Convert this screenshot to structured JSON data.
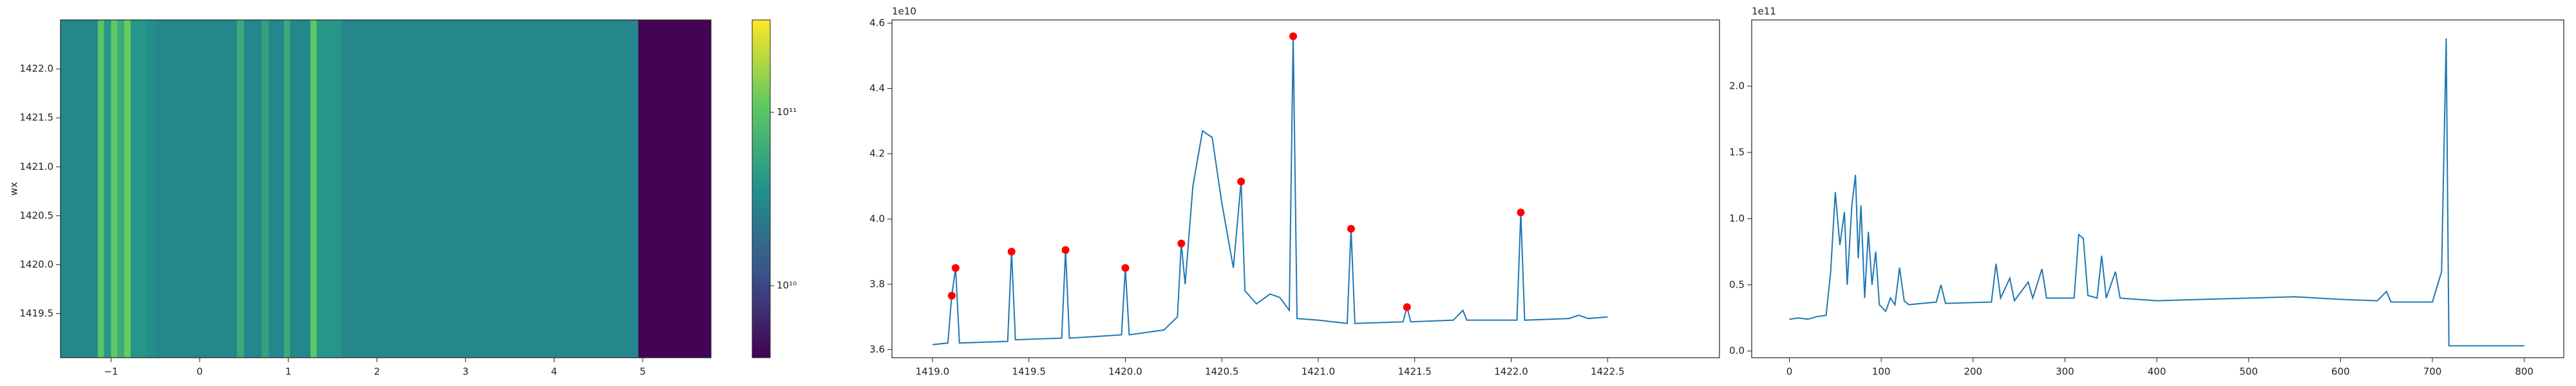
{
  "chart_data": [
    {
      "type": "heatmap",
      "ylabel": "wx",
      "x_edges": [
        -1.57,
        -1.15,
        -1.08,
        -1.0,
        -0.93,
        -0.85,
        -0.78,
        -0.6,
        -0.5,
        0.42,
        0.5,
        0.7,
        0.78,
        0.95,
        1.02,
        1.25,
        1.32,
        1.6,
        4.95,
        5.77
      ],
      "values": [
        30000000000,
        100000000000,
        40000000000,
        110000000000,
        60000000000,
        120000000000,
        40000000000,
        35000000000,
        30000000000,
        60000000000,
        30000000000,
        50000000000,
        30000000000,
        60000000000,
        30000000000,
        110000000000,
        40000000000,
        30000000000,
        4000000000
      ],
      "xlim": [
        -1.57,
        5.77
      ],
      "ylim": [
        1419.05,
        1422.5
      ],
      "xticks": [
        {
          "value": -1,
          "label": "−1"
        },
        0,
        1,
        2,
        3,
        4,
        5
      ],
      "yticks": [
        1419.5,
        {
          "value": 1420,
          "label": "1420.0"
        },
        1420.5,
        {
          "value": 1421,
          "label": "1421.0"
        },
        1421.5,
        {
          "value": 1422,
          "label": "1422.0"
        }
      ],
      "colorbar": {
        "colormap": "viridis",
        "log": true,
        "lim": [
          3850000000,
          340000000000
        ],
        "ticks": [
          {
            "value": 10000000000,
            "label": "10¹⁰"
          },
          {
            "value": 100000000000,
            "label": "10¹¹"
          }
        ]
      }
    },
    {
      "type": "line",
      "color": "#1f77b4",
      "y_offset": "1e10",
      "x": [
        1419.0,
        1419.08,
        1419.1,
        1419.12,
        1419.14,
        1419.39,
        1419.41,
        1419.43,
        1419.67,
        1419.69,
        1419.71,
        1419.85,
        1419.98,
        1420.0,
        1420.02,
        1420.2,
        1420.27,
        1420.29,
        1420.31,
        1420.35,
        1420.4,
        1420.45,
        1420.5,
        1420.56,
        1420.6,
        1420.62,
        1420.68,
        1420.75,
        1420.8,
        1420.85,
        1420.87,
        1420.89,
        1421.0,
        1421.15,
        1421.17,
        1421.19,
        1421.44,
        1421.46,
        1421.48,
        1421.7,
        1421.75,
        1421.77,
        1422.03,
        1422.05,
        1422.07,
        1422.3,
        1422.35,
        1422.4,
        1422.5
      ],
      "values": [
        3.615,
        3.62,
        3.765,
        3.85,
        3.62,
        3.625,
        3.9,
        3.63,
        3.635,
        3.905,
        3.635,
        3.64,
        3.645,
        3.85,
        3.645,
        3.66,
        3.7,
        3.925,
        3.8,
        4.1,
        4.27,
        4.25,
        4.05,
        3.85,
        4.115,
        3.78,
        3.74,
        3.77,
        3.76,
        3.72,
        4.56,
        3.695,
        3.69,
        3.68,
        3.97,
        3.68,
        3.685,
        3.73,
        3.685,
        3.69,
        3.72,
        3.69,
        3.69,
        4.02,
        3.69,
        3.695,
        3.705,
        3.695,
        3.7
      ],
      "markers": {
        "color": "red",
        "x": [
          1419.1,
          1419.12,
          1419.41,
          1419.69,
          1420.0,
          1420.29,
          1420.6,
          1420.87,
          1421.17,
          1421.46,
          1422.05
        ],
        "values": [
          3.765,
          3.85,
          3.9,
          3.905,
          3.85,
          3.925,
          4.115,
          4.56,
          3.97,
          3.73,
          4.02
        ]
      },
      "xlim": [
        1418.79,
        1423.08
      ],
      "ylim": [
        3.575,
        4.61
      ],
      "xticks": [
        {
          "value": 1419,
          "label": "1419.0"
        },
        1419.5,
        {
          "value": 1420,
          "label": "1420.0"
        },
        1420.5,
        {
          "value": 1421,
          "label": "1421.0"
        },
        1421.5,
        {
          "value": 1422,
          "label": "1422.0"
        },
        1422.5
      ],
      "yticks": [
        3.6,
        3.8,
        {
          "value": 4,
          "label": "4.0"
        },
        4.2,
        4.4,
        4.6
      ]
    },
    {
      "type": "line",
      "color": "#1f77b4",
      "y_offset": "1e11",
      "x": [
        0,
        10,
        20,
        30,
        40,
        45,
        50,
        55,
        60,
        63,
        68,
        72,
        75,
        78,
        82,
        86,
        90,
        94,
        98,
        105,
        110,
        115,
        120,
        125,
        130,
        160,
        165,
        170,
        220,
        225,
        230,
        240,
        245,
        260,
        265,
        275,
        280,
        310,
        315,
        320,
        325,
        335,
        340,
        345,
        355,
        360,
        400,
        450,
        500,
        550,
        600,
        640,
        650,
        655,
        700,
        710,
        715,
        718,
        800
      ],
      "values": [
        0.24,
        0.25,
        0.24,
        0.26,
        0.27,
        0.6,
        1.2,
        0.8,
        1.05,
        0.5,
        1.1,
        1.33,
        0.7,
        1.1,
        0.4,
        0.9,
        0.5,
        0.75,
        0.35,
        0.3,
        0.4,
        0.35,
        0.63,
        0.38,
        0.35,
        0.37,
        0.5,
        0.36,
        0.37,
        0.66,
        0.4,
        0.55,
        0.38,
        0.52,
        0.4,
        0.62,
        0.4,
        0.4,
        0.88,
        0.85,
        0.42,
        0.4,
        0.72,
        0.4,
        0.6,
        0.4,
        0.38,
        0.39,
        0.4,
        0.41,
        0.39,
        0.38,
        0.45,
        0.37,
        0.37,
        0.6,
        2.36,
        0.04,
        0.04
      ],
      "xlim": [
        -41,
        843
      ],
      "ylim": [
        -0.05,
        2.5
      ],
      "xticks": [
        0,
        100,
        200,
        300,
        400,
        500,
        600,
        700,
        800
      ],
      "yticks": [
        {
          "value": 0,
          "label": "0.0"
        },
        0.5,
        {
          "value": 1,
          "label": "1.0"
        },
        1.5,
        {
          "value": 2,
          "label": "2.0"
        }
      ]
    }
  ]
}
